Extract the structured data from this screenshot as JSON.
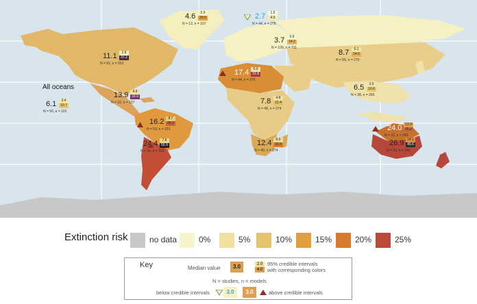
{
  "regions": [
    {
      "id": "all-oceans",
      "label": "All oceans",
      "median": "6.1",
      "ci_low": "3.4",
      "ci_high": "10.7",
      "counts": "N = 50, n = 116",
      "risk_color": "#e9cf7c",
      "ci_low_color": "#f2e7a6",
      "ci_high_color": "#e7c76f"
    },
    {
      "id": "north-america",
      "median": "11.1",
      "ci_low": "2.8",
      "ci_high": "37.2",
      "counts": "N = 81, n = 552",
      "risk_color": "#d9a85c",
      "ci_low_color": "#f4eeb5",
      "ci_high_color": "#4a2a43"
    },
    {
      "id": "central-america",
      "median": "13.9",
      "ci_low": "4.9",
      "ci_high": "33.9",
      "counts": "N = 22, n = 127",
      "risk_color": "#d7a04c",
      "ci_low_color": "#f0e3a0",
      "ci_high_color": "#7b3466"
    },
    {
      "id": "south-america-north",
      "median": "16.2",
      "ci_low": "8.7",
      "ci_high": "25.2",
      "counts": "N = 53, n = 291",
      "risk_color": "#d98f3a",
      "ci_low_color": "#e8cb7a",
      "ci_high_color": "#c56a3c"
    },
    {
      "id": "south-america-south",
      "median": "24.4",
      "ci_low": "7.8",
      "ci_high": "55.9",
      "counts": "N = 34, n = 150",
      "risk_color": "#c0503a",
      "ci_low_color": "#efd68a",
      "ci_high_color": "#222222"
    },
    {
      "id": "greenland",
      "median": "4.6",
      "ci_low": "0.9",
      "ci_high": "20.0",
      "counts": "N = 12, n = 107",
      "risk_color": "#f3eeb8",
      "ci_low_color": "#f8f5cf",
      "ci_high_color": "#e5a33e"
    },
    {
      "id": "europe",
      "median": "2.7",
      "ci_low": "1.5",
      "ci_high": "4.9",
      "counts": "N = 44, n = 278",
      "risk_color": "#f7f3c6",
      "ci_low_color": "#fbf8d8",
      "ci_high_color": "#f2e9ac",
      "below_credible": true
    },
    {
      "id": "north-asia",
      "median": "3.7",
      "ci_low": "0.9",
      "ci_high": "14.2",
      "counts": "N = 109, n = 711",
      "risk_color": "#f3eeb8",
      "ci_low_color": "#f8f5cf",
      "ci_high_color": "#e8b55a"
    },
    {
      "id": "asia",
      "median": "8.7",
      "ci_low": "5.1",
      "ci_high": "14.6",
      "counts": "N = 56, n = 275",
      "risk_color": "#e6c57a",
      "ci_low_color": "#f0e2a2",
      "ci_high_color": "#e7b256"
    },
    {
      "id": "north-africa",
      "median": "17.4",
      "ci_low": "5.0",
      "ci_high": "31.8",
      "counts": "N = 44, n = 276",
      "risk_color": "#d7862f",
      "ci_low_color": "#f0df9d",
      "ci_high_color": "#9c3a47",
      "above_credible": true
    },
    {
      "id": "africa",
      "median": "7.8",
      "ci_low": "4.8",
      "ci_high": "12.4",
      "counts": "N = 48, n = 274",
      "risk_color": "#e6c67f",
      "ci_low_color": "#efe1a2",
      "ci_high_color": "#e5be6a"
    },
    {
      "id": "south-africa",
      "median": "12.4",
      "ci_low": "6.0",
      "ci_high": "22.5",
      "counts": "N = 40, n = 274",
      "risk_color": "#d9a451",
      "ci_low_color": "#eedc96",
      "ci_high_color": "#d77d35"
    },
    {
      "id": "southeast-asia",
      "median": "6.5",
      "ci_low": "3.9",
      "ci_high": "10.6",
      "counts": "N = 38, n = 265",
      "risk_color": "#eadb9a",
      "ci_low_color": "#f1e6ad",
      "ci_high_color": "#e7c76f"
    },
    {
      "id": "australia-north",
      "median": "24.0",
      "ci_low": "13.3",
      "ci_high": "25.2",
      "counts": "N = 33, n = 249",
      "risk_color": "#c46c30",
      "ci_low_color": "#dca052",
      "ci_high_color": "#c56a3c",
      "above_credible": true
    },
    {
      "id": "australia-south",
      "median": "26.9",
      "ci_low": "14.1",
      "ci_high": "45.6",
      "counts": "N = 33, n = 249",
      "risk_color": "#b6463a",
      "ci_low_color": "#d98f3a",
      "ci_high_color": "#2c2c2c"
    }
  ],
  "legend": {
    "title": "Extinction risk",
    "items": [
      {
        "label": "no data",
        "color": "#c8c8c8"
      },
      {
        "label": "0%",
        "color": "#f7f4cb"
      },
      {
        "label": "5%",
        "color": "#efe1a2"
      },
      {
        "label": "10%",
        "color": "#e4c26f"
      },
      {
        "label": "15%",
        "color": "#e09e3c"
      },
      {
        "label": "20%",
        "color": "#d9782f"
      },
      {
        "label": "25%",
        "color": "#bb4a3a"
      }
    ]
  },
  "key": {
    "title": "Key",
    "median_label": "Median value",
    "median_example": "3.0",
    "ci_example_low": "2.0",
    "ci_example_high": "4.0",
    "ci_label_line1": "95% credible intervals",
    "ci_label_line2": "with corresponding colors",
    "counts_note": "N = studies, n = models",
    "below_label": "below credible intervals",
    "below_example": "3.0",
    "above_example": "3.0",
    "above_label": "above credible intervals"
  }
}
